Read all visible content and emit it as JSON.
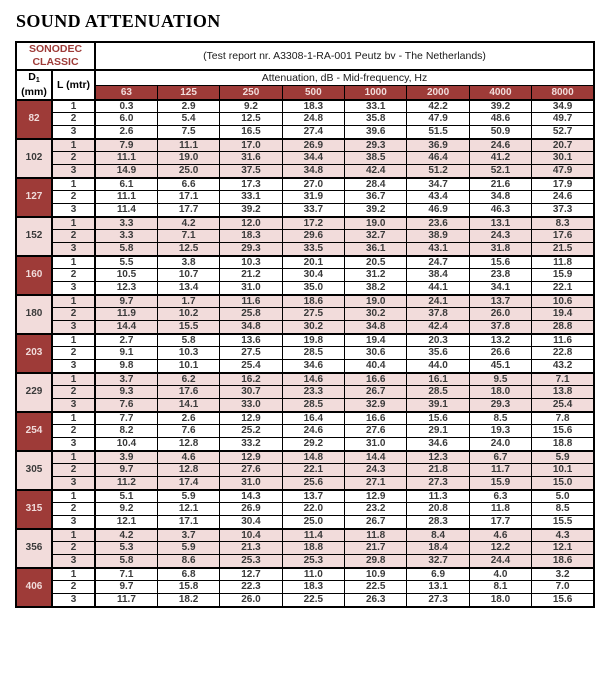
{
  "page": {
    "title": "SOUND ATTENUATION"
  },
  "colors": {
    "maroon": "#9e3b38",
    "pink": "#f2dcdb",
    "data_text": "#3a3a3a",
    "border": "#000000"
  },
  "table": {
    "product_line1": "SONODEC",
    "product_line2": "CLASSIC",
    "test_report": "(Test report nr. A3308-1-RA-001 Peutz bv - The Netherlands)",
    "col_d1_symbol": "D",
    "col_d1_subscript": "1",
    "col_d1_unit": "(mm)",
    "col_l_label": "L (mtr)",
    "attenuation_label": "Attenuation, dB - Mid-frequency, Hz",
    "frequencies": [
      "63",
      "125",
      "250",
      "500",
      "1000",
      "2000",
      "4000",
      "8000"
    ],
    "groups": [
      {
        "d1": "82",
        "variant": "dark",
        "rows": [
          {
            "l": "1",
            "values": [
              "0.3",
              "2.9",
              "9.2",
              "18.3",
              "33.1",
              "42.2",
              "39.2",
              "34.9"
            ]
          },
          {
            "l": "2",
            "values": [
              "6.0",
              "5.4",
              "12.5",
              "24.8",
              "35.8",
              "47.9",
              "48.6",
              "49.7"
            ]
          },
          {
            "l": "3",
            "values": [
              "2.6",
              "7.5",
              "16.5",
              "27.4",
              "39.6",
              "51.5",
              "50.9",
              "52.7"
            ]
          }
        ]
      },
      {
        "d1": "102",
        "variant": "pink",
        "rows": [
          {
            "l": "1",
            "values": [
              "7.9",
              "11.1",
              "17.0",
              "26.9",
              "29.3",
              "36.9",
              "24.6",
              "20.7"
            ]
          },
          {
            "l": "2",
            "values": [
              "11.1",
              "19.0",
              "31.6",
              "34.4",
              "38.5",
              "46.4",
              "41.2",
              "30.1"
            ]
          },
          {
            "l": "3",
            "values": [
              "14.9",
              "25.0",
              "37.5",
              "34.8",
              "42.4",
              "51.2",
              "52.1",
              "47.9"
            ]
          }
        ]
      },
      {
        "d1": "127",
        "variant": "dark",
        "rows": [
          {
            "l": "1",
            "values": [
              "6.1",
              "6.6",
              "17.3",
              "27.0",
              "28.4",
              "34.7",
              "21.6",
              "17.9"
            ]
          },
          {
            "l": "2",
            "values": [
              "11.1",
              "17.1",
              "33.1",
              "31.9",
              "36.7",
              "43.4",
              "34.8",
              "24.6"
            ]
          },
          {
            "l": "3",
            "values": [
              "11.4",
              "17.7",
              "39.2",
              "33.7",
              "39.2",
              "46.9",
              "46.3",
              "37.3"
            ]
          }
        ]
      },
      {
        "d1": "152",
        "variant": "pink",
        "rows": [
          {
            "l": "1",
            "values": [
              "3.3",
              "4.2",
              "12.0",
              "17.2",
              "19.0",
              "23.6",
              "13.1",
              "8.3"
            ]
          },
          {
            "l": "2",
            "values": [
              "3.3",
              "7.1",
              "18.3",
              "29.6",
              "32.7",
              "38.9",
              "24.3",
              "17.6"
            ]
          },
          {
            "l": "3",
            "values": [
              "5.8",
              "12.5",
              "29.3",
              "33.5",
              "36.1",
              "43.1",
              "31.8",
              "21.5"
            ]
          }
        ]
      },
      {
        "d1": "160",
        "variant": "dark",
        "rows": [
          {
            "l": "1",
            "values": [
              "5.5",
              "3.8",
              "10.3",
              "20.1",
              "20.5",
              "24.7",
              "15.6",
              "11.8"
            ]
          },
          {
            "l": "2",
            "values": [
              "10.5",
              "10.7",
              "21.2",
              "30.4",
              "31.2",
              "38.4",
              "23.8",
              "15.9"
            ]
          },
          {
            "l": "3",
            "values": [
              "12.3",
              "13.4",
              "31.0",
              "35.0",
              "38.2",
              "44.1",
              "34.1",
              "22.1"
            ]
          }
        ]
      },
      {
        "d1": "180",
        "variant": "pink",
        "rows": [
          {
            "l": "1",
            "values": [
              "9.7",
              "1.7",
              "11.6",
              "18.6",
              "19.0",
              "24.1",
              "13.7",
              "10.6"
            ]
          },
          {
            "l": "2",
            "values": [
              "11.9",
              "10.2",
              "25.8",
              "27.5",
              "30.2",
              "37.8",
              "26.0",
              "19.4"
            ]
          },
          {
            "l": "3",
            "values": [
              "14.4",
              "15.5",
              "34.8",
              "30.2",
              "34.8",
              "42.4",
              "37.8",
              "28.8"
            ]
          }
        ]
      },
      {
        "d1": "203",
        "variant": "dark",
        "rows": [
          {
            "l": "1",
            "values": [
              "2.7",
              "5.8",
              "13.6",
              "19.8",
              "19.4",
              "20.3",
              "13.2",
              "11.6"
            ]
          },
          {
            "l": "2",
            "values": [
              "9.1",
              "10.3",
              "27.5",
              "28.5",
              "30.6",
              "35.6",
              "26.6",
              "22.8"
            ]
          },
          {
            "l": "3",
            "values": [
              "9.8",
              "10.1",
              "25.4",
              "34.6",
              "40.4",
              "44.0",
              "45.1",
              "43.2"
            ]
          }
        ]
      },
      {
        "d1": "229",
        "variant": "pink",
        "rows": [
          {
            "l": "1",
            "values": [
              "3.7",
              "6.2",
              "16.2",
              "14.6",
              "16.6",
              "16.1",
              "9.5",
              "7.1"
            ]
          },
          {
            "l": "2",
            "values": [
              "9.3",
              "17.6",
              "30.7",
              "23.3",
              "26.7",
              "28.5",
              "18.0",
              "13.8"
            ]
          },
          {
            "l": "3",
            "values": [
              "7.6",
              "14.1",
              "33.0",
              "28.5",
              "32.9",
              "39.1",
              "29.3",
              "25.4"
            ]
          }
        ]
      },
      {
        "d1": "254",
        "variant": "dark",
        "rows": [
          {
            "l": "1",
            "values": [
              "7.7",
              "2.6",
              "12.9",
              "16.4",
              "16.6",
              "15.6",
              "8.5",
              "7.8"
            ]
          },
          {
            "l": "2",
            "values": [
              "8.2",
              "7.6",
              "25.2",
              "24.6",
              "27.6",
              "29.1",
              "19.3",
              "15.6"
            ]
          },
          {
            "l": "3",
            "values": [
              "10.4",
              "12.8",
              "33.2",
              "29.2",
              "31.0",
              "34.6",
              "24.0",
              "18.8"
            ]
          }
        ]
      },
      {
        "d1": "305",
        "variant": "pink",
        "rows": [
          {
            "l": "1",
            "values": [
              "3.9",
              "4.6",
              "12.9",
              "14.8",
              "14.4",
              "12.3",
              "6.7",
              "5.9"
            ]
          },
          {
            "l": "2",
            "values": [
              "9.7",
              "12.8",
              "27.6",
              "22.1",
              "24.3",
              "21.8",
              "11.7",
              "10.1"
            ]
          },
          {
            "l": "3",
            "values": [
              "11.2",
              "17.4",
              "31.0",
              "25.6",
              "27.1",
              "27.3",
              "15.9",
              "15.0"
            ]
          }
        ]
      },
      {
        "d1": "315",
        "variant": "dark",
        "rows": [
          {
            "l": "1",
            "values": [
              "5.1",
              "5.9",
              "14.3",
              "13.7",
              "12.9",
              "11.3",
              "6.3",
              "5.0"
            ]
          },
          {
            "l": "2",
            "values": [
              "9.2",
              "12.1",
              "26.9",
              "22.0",
              "23.2",
              "20.8",
              "11.8",
              "8.5"
            ]
          },
          {
            "l": "3",
            "values": [
              "12.1",
              "17.1",
              "30.4",
              "25.0",
              "26.7",
              "28.3",
              "17.7",
              "15.5"
            ]
          }
        ]
      },
      {
        "d1": "356",
        "variant": "pink",
        "rows": [
          {
            "l": "1",
            "values": [
              "4.2",
              "3.7",
              "10.4",
              "11.4",
              "11.8",
              "8.4",
              "4.6",
              "4.3"
            ]
          },
          {
            "l": "2",
            "values": [
              "5.3",
              "5.9",
              "21.3",
              "18.8",
              "21.7",
              "18.4",
              "12.2",
              "12.1"
            ]
          },
          {
            "l": "3",
            "values": [
              "5.8",
              "8.6",
              "25.3",
              "25.3",
              "29.8",
              "32.7",
              "24.4",
              "18.6"
            ]
          }
        ]
      },
      {
        "d1": "406",
        "variant": "dark",
        "rows": [
          {
            "l": "1",
            "values": [
              "7.1",
              "6.8",
              "12.7",
              "11.0",
              "10.9",
              "6.9",
              "4.0",
              "3.2"
            ]
          },
          {
            "l": "2",
            "values": [
              "9.7",
              "15.8",
              "22.3",
              "18.3",
              "22.5",
              "13.1",
              "8.1",
              "7.0"
            ]
          },
          {
            "l": "3",
            "values": [
              "11.7",
              "18.2",
              "26.0",
              "22.5",
              "26.3",
              "27.3",
              "18.0",
              "15.6"
            ]
          }
        ]
      }
    ]
  }
}
